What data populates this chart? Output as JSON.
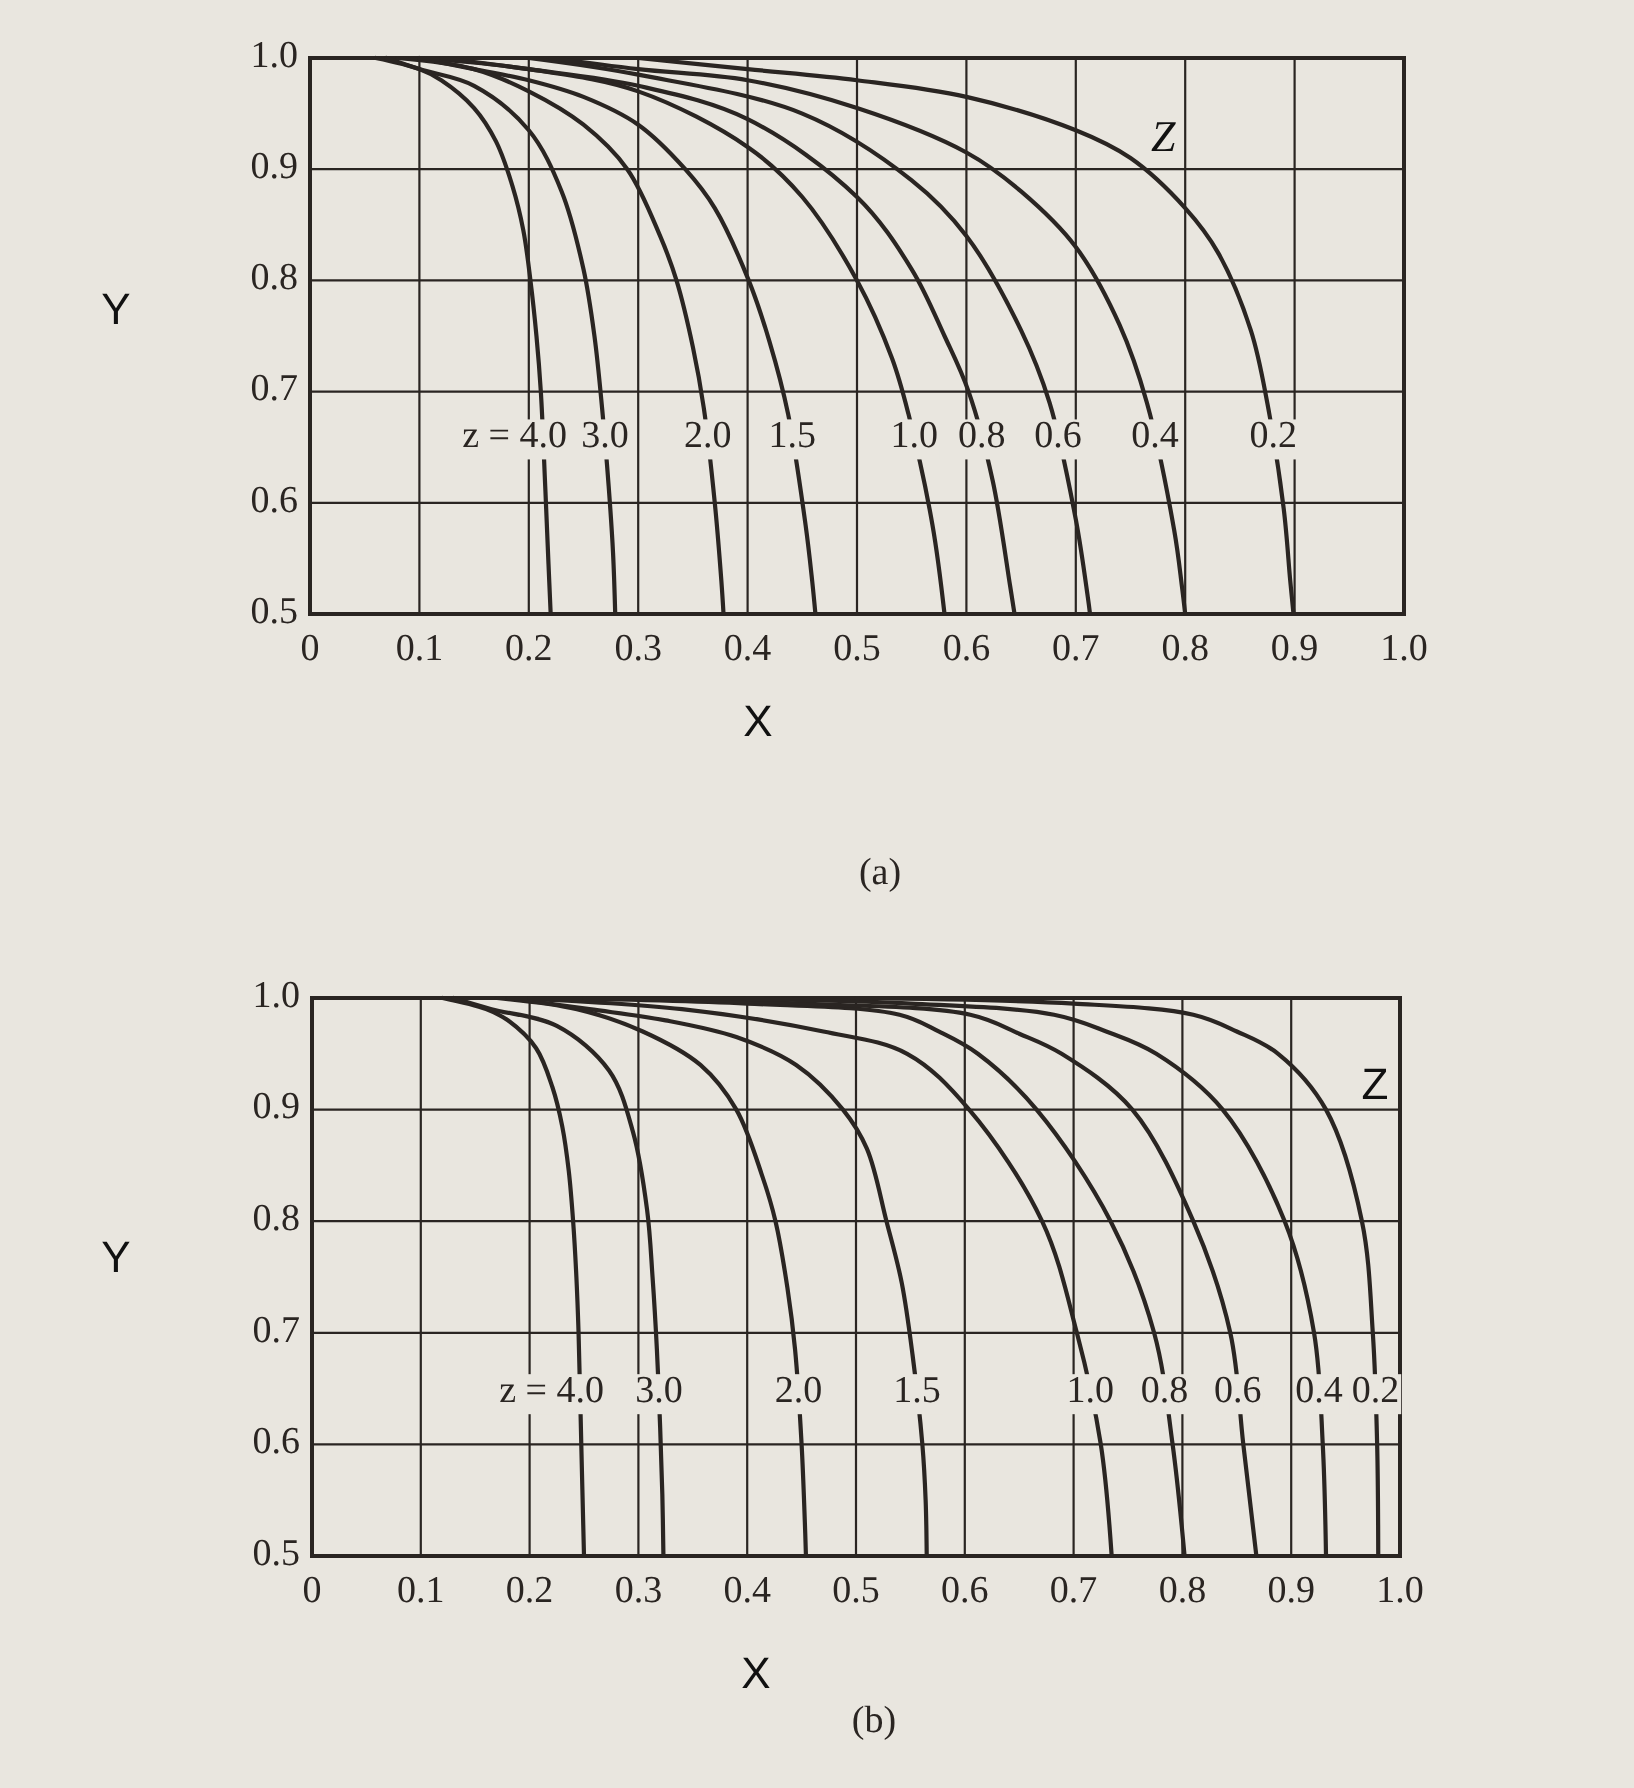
{
  "chart_data": [
    {
      "type": "line",
      "title": "(a)",
      "xlabel": "X",
      "ylabel": "Y",
      "annotations": [
        "Z"
      ],
      "xlim": [
        0,
        1
      ],
      "ylim": [
        0.5,
        1
      ],
      "xticks": [
        0,
        0.1,
        0.2,
        0.3,
        0.4,
        0.5,
        0.6,
        0.7,
        0.8,
        0.9,
        {
          "value": 1,
          "label": "1.0"
        }
      ],
      "yticks": [
        0.5,
        0.6,
        0.7,
        0.8,
        0.9,
        {
          "value": 1,
          "label": "1.0"
        }
      ],
      "grid": true,
      "series": [
        {
          "name": "z = 4.0",
          "color": "#2a2522",
          "x": [
            0.06,
            0.1,
            0.12,
            0.15,
            0.17,
            0.185,
            0.195,
            0.2015,
            0.207,
            0.211,
            0.215,
            0.218,
            0.22
          ],
          "values": [
            1.0,
            0.99,
            0.98,
            0.955,
            0.925,
            0.885,
            0.845,
            0.8,
            0.75,
            0.7,
            0.615,
            0.545,
            0.5
          ]
        },
        {
          "name": "3.0",
          "color": "#2a2522",
          "x": [
            0.07,
            0.1,
            0.15,
            0.2,
            0.23,
            0.25,
            0.26,
            0.267,
            0.273,
            0.277,
            0.279
          ],
          "values": [
            1.0,
            0.99,
            0.975,
            0.935,
            0.88,
            0.81,
            0.75,
            0.685,
            0.615,
            0.555,
            0.5
          ]
        },
        {
          "name": "2.0",
          "color": "#2a2522",
          "x": [
            0.08,
            0.15,
            0.2,
            0.25,
            0.29,
            0.32,
            0.335,
            0.35,
            0.36,
            0.37,
            0.376,
            0.378
          ],
          "values": [
            1.0,
            0.99,
            0.97,
            0.94,
            0.9,
            0.84,
            0.8,
            0.74,
            0.685,
            0.6,
            0.53,
            0.5
          ]
        },
        {
          "name": "1.5",
          "color": "#2a2522",
          "x": [
            0.1,
            0.15,
            0.2,
            0.25,
            0.3,
            0.343,
            0.37,
            0.401,
            0.42,
            0.437,
            0.453,
            0.459,
            0.462
          ],
          "values": [
            1.0,
            0.99,
            0.98,
            0.965,
            0.94,
            0.9,
            0.865,
            0.8,
            0.745,
            0.68,
            0.58,
            0.53,
            0.5
          ]
        },
        {
          "name": "1.0",
          "color": "#2a2522",
          "x": [
            0.1,
            0.2,
            0.3,
            0.4,
            0.45,
            0.5,
            0.532,
            0.547,
            0.569,
            0.58
          ],
          "values": [
            1.0,
            0.99,
            0.97,
            0.92,
            0.875,
            0.8,
            0.73,
            0.68,
            0.58,
            0.5
          ]
        },
        {
          "name": "0.8",
          "color": "#2a2522",
          "x": [
            0.12,
            0.2,
            0.3,
            0.4,
            0.5,
            0.55,
            0.58,
            0.602,
            0.624,
            0.64,
            0.644
          ],
          "values": [
            1.0,
            0.99,
            0.975,
            0.945,
            0.875,
            0.81,
            0.75,
            0.7,
            0.62,
            0.525,
            0.5
          ]
        },
        {
          "name": "0.6",
          "color": "#2a2522",
          "x": [
            0.2,
            0.3,
            0.45,
            0.55,
            0.6,
            0.65,
            0.676,
            0.7,
            0.711,
            0.713
          ],
          "values": [
            1.0,
            0.985,
            0.95,
            0.89,
            0.84,
            0.755,
            0.69,
            0.585,
            0.515,
            0.5
          ]
        },
        {
          "name": "0.4",
          "color": "#2a2522",
          "x": [
            0.22,
            0.3,
            0.4,
            0.5,
            0.6,
            0.65,
            0.7,
            0.74,
            0.765,
            0.79,
            0.797,
            0.8
          ],
          "values": [
            1.0,
            0.99,
            0.98,
            0.955,
            0.915,
            0.88,
            0.83,
            0.76,
            0.69,
            0.575,
            0.525,
            0.5
          ]
        },
        {
          "name": "0.2",
          "color": "#2a2522",
          "x": [
            0.3,
            0.4,
            0.5,
            0.6,
            0.7,
            0.75,
            0.8,
            0.83,
            0.86,
            0.875,
            0.89,
            0.896,
            0.899
          ],
          "values": [
            1.0,
            0.99,
            0.98,
            0.965,
            0.935,
            0.91,
            0.865,
            0.825,
            0.755,
            0.69,
            0.595,
            0.53,
            0.5
          ]
        }
      ]
    },
    {
      "type": "line",
      "title": "(b)",
      "xlabel": "X",
      "ylabel": "Y",
      "annotations": [
        "Z"
      ],
      "xlim": [
        0,
        1
      ],
      "ylim": [
        0.5,
        1
      ],
      "xticks": [
        0,
        0.1,
        0.2,
        0.3,
        0.4,
        0.5,
        0.6,
        0.7,
        0.8,
        0.9,
        {
          "value": 1,
          "label": "1.0"
        }
      ],
      "yticks": [
        0.5,
        0.6,
        0.7,
        0.8,
        0.9,
        {
          "value": 1,
          "label": "1.0"
        }
      ],
      "grid": true,
      "series": [
        {
          "name": "z = 4.0",
          "color": "#2a2522",
          "x": [
            0.12,
            0.16,
            0.18,
            0.206,
            0.221,
            0.23,
            0.236,
            0.24,
            0.243,
            0.245,
            0.2475,
            0.25
          ],
          "values": [
            1.0,
            0.99,
            0.98,
            0.955,
            0.92,
            0.885,
            0.845,
            0.8,
            0.75,
            0.7,
            0.6,
            0.5
          ]
        },
        {
          "name": "3.0",
          "color": "#2a2522",
          "x": [
            0.13,
            0.165,
            0.225,
            0.273,
            0.295,
            0.308,
            0.313,
            0.317,
            0.32,
            0.322,
            0.323
          ],
          "values": [
            1.0,
            0.99,
            0.975,
            0.935,
            0.88,
            0.81,
            0.75,
            0.685,
            0.615,
            0.555,
            0.5
          ]
        },
        {
          "name": "2.0",
          "color": "#2a2522",
          "x": [
            0.17,
            0.2435,
            0.304,
            0.357,
            0.39,
            0.414,
            0.426,
            0.437,
            0.444,
            0.45,
            0.453,
            0.454
          ],
          "values": [
            1.0,
            0.99,
            0.97,
            0.94,
            0.9,
            0.84,
            0.8,
            0.74,
            0.685,
            0.6,
            0.53,
            0.5
          ]
        },
        {
          "name": "1.5",
          "color": "#2a2522",
          "x": [
            0.18,
            0.255,
            0.325,
            0.39,
            0.445,
            0.488,
            0.51,
            0.528,
            0.542,
            0.552,
            0.561,
            0.564,
            0.565
          ],
          "values": [
            1.0,
            0.99,
            0.98,
            0.965,
            0.94,
            0.9,
            0.865,
            0.8,
            0.745,
            0.68,
            0.6,
            0.55,
            0.5
          ]
        },
        {
          "name": "1.0",
          "color": "#2a2522",
          "x": [
            0.18,
            0.34,
            0.47,
            0.547,
            0.604,
            0.671,
            0.703,
            0.725,
            0.735
          ],
          "values": [
            1.0,
            0.99,
            0.97,
            0.95,
            0.9,
            0.8,
            0.7,
            0.6,
            0.5
          ]
        },
        {
          "name": "0.8",
          "color": "#2a2522",
          "x": [
            0.2,
            0.4,
            0.54,
            0.576,
            0.612,
            0.666,
            0.734,
            0.774,
            0.791,
            0.802
          ],
          "values": [
            1.0,
            0.995,
            0.985,
            0.97,
            0.95,
            0.9,
            0.8,
            0.7,
            0.6,
            0.5
          ]
        },
        {
          "name": "0.6",
          "color": "#2a2522",
          "x": [
            0.25,
            0.45,
            0.605,
            0.65,
            0.689,
            0.754,
            0.81,
            0.844,
            0.856,
            0.868
          ],
          "values": [
            1.0,
            0.995,
            0.985,
            0.968,
            0.95,
            0.9,
            0.8,
            0.7,
            0.6,
            0.5
          ]
        },
        {
          "name": "0.4",
          "color": "#2a2522",
          "x": [
            0.35,
            0.55,
            0.682,
            0.73,
            0.776,
            0.837,
            0.894,
            0.921,
            0.929,
            0.932
          ],
          "values": [
            1.0,
            0.995,
            0.985,
            0.97,
            0.95,
            0.9,
            0.8,
            0.7,
            0.6,
            0.5
          ]
        },
        {
          "name": "0.2",
          "color": "#2a2522",
          "x": [
            0.5,
            0.7,
            0.81,
            0.85,
            0.888,
            0.932,
            0.965,
            0.975,
            0.979,
            0.98
          ],
          "values": [
            1.0,
            0.995,
            0.985,
            0.97,
            0.95,
            0.9,
            0.8,
            0.7,
            0.6,
            0.5
          ]
        }
      ]
    }
  ]
}
